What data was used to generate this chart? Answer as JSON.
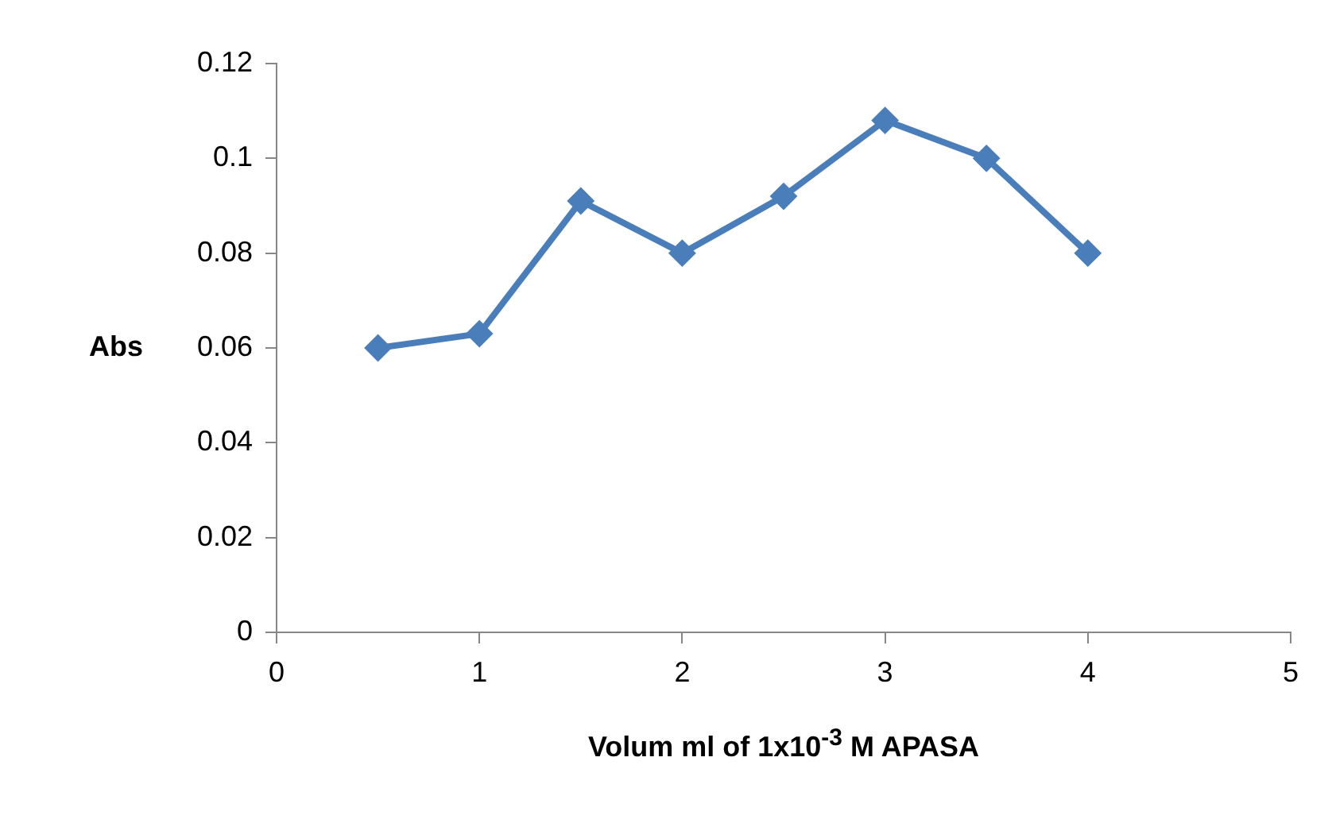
{
  "chart_data": {
    "type": "line",
    "xlabel": "Volum ml of 1x10$^{-3}$ M APASA",
    "ylabel": "Abs",
    "x": [
      0.5,
      1,
      1.5,
      2,
      2.5,
      3,
      3.5,
      4
    ],
    "series": [
      {
        "color": "#4a7ebb",
        "values": [
          0.06,
          0.063,
          0.091,
          0.08,
          0.092,
          0.108,
          0.1,
          0.08
        ]
      }
    ],
    "xlim": [
      0,
      5
    ],
    "xticks": [
      0,
      1,
      2,
      3,
      4,
      5
    ],
    "ylim": [
      0,
      0.12
    ],
    "yticks": [
      0,
      0.02,
      0.04,
      0.06,
      0.08,
      0.1,
      0.12
    ],
    "grid": false,
    "legend": false,
    "marker": "diamond",
    "line_style": "solid"
  }
}
